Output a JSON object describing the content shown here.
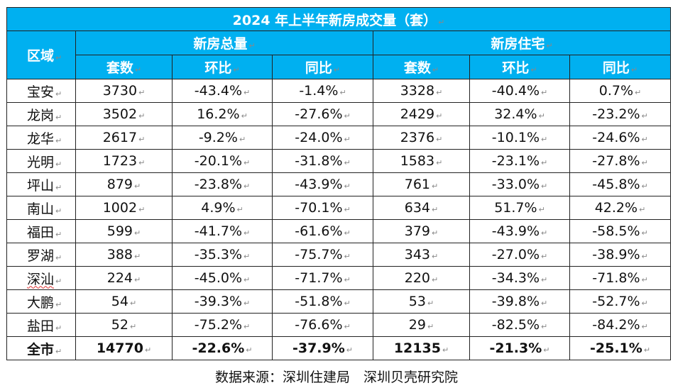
{
  "table": {
    "title": "2024 年上半年新房成交量（套）",
    "region_header": "区域",
    "group_headers": [
      "新房总量",
      "新房住宅"
    ],
    "sub_headers": [
      "套数",
      "环比",
      "同比",
      "套数",
      "环比",
      "同比"
    ],
    "rows": [
      {
        "region": "宝安",
        "cells": [
          "3730",
          "-43.4%",
          "-1.4%",
          "3328",
          "-40.4%",
          "0.7%"
        ]
      },
      {
        "region": "龙岗",
        "cells": [
          "3502",
          "16.2%",
          "-27.6%",
          "2429",
          "32.4%",
          "-23.2%"
        ]
      },
      {
        "region": "龙华",
        "cells": [
          "2617",
          "-9.2%",
          "-24.0%",
          "2376",
          "-10.1%",
          "-24.6%"
        ]
      },
      {
        "region": "光明",
        "cells": [
          "1723",
          "-20.1%",
          "-31.8%",
          "1583",
          "-23.1%",
          "-27.8%"
        ]
      },
      {
        "region": "坪山",
        "cells": [
          "879",
          "-23.8%",
          "-43.9%",
          "761",
          "-33.0%",
          "-45.8%"
        ]
      },
      {
        "region": "南山",
        "cells": [
          "1002",
          "4.9%",
          "-70.1%",
          "634",
          "51.7%",
          "42.2%"
        ]
      },
      {
        "region": "福田",
        "cells": [
          "599",
          "-41.7%",
          "-61.6%",
          "379",
          "-43.9%",
          "-58.5%"
        ]
      },
      {
        "region": "罗湖",
        "cells": [
          "388",
          "-35.3%",
          "-75.7%",
          "343",
          "-27.0%",
          "-38.9%"
        ]
      },
      {
        "region": "深汕",
        "cells": [
          "224",
          "-45.0%",
          "-71.7%",
          "220",
          "-34.3%",
          "-71.8%"
        ]
      },
      {
        "region": "大鹏",
        "cells": [
          "54",
          "-39.3%",
          "-51.8%",
          "53",
          "-39.8%",
          "-52.7%"
        ]
      },
      {
        "region": "盐田",
        "cells": [
          "52",
          "-75.2%",
          "-76.6%",
          "29",
          "-82.5%",
          "-84.2%"
        ]
      }
    ],
    "total": {
      "region": "全市",
      "cells": [
        "14770",
        "-22.6%",
        "-37.9%",
        "12135",
        "-21.3%",
        "-25.1%"
      ]
    },
    "header_color": "#00b0f0",
    "paragraph_mark": "↵"
  },
  "footer": {
    "source": "数据来源：深圳住建局　深圳贝壳研究院"
  }
}
